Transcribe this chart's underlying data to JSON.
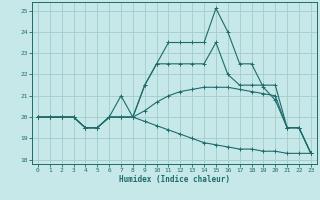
{
  "xlabel": "Humidex (Indice chaleur)",
  "background_color": "#c6e8e8",
  "grid_color": "#a4cccc",
  "line_color": "#1e6b6b",
  "xlim": [
    -0.5,
    23.5
  ],
  "ylim": [
    17.8,
    25.4
  ],
  "yticks": [
    18,
    19,
    20,
    21,
    22,
    23,
    24,
    25
  ],
  "xticks": [
    0,
    1,
    2,
    3,
    4,
    5,
    6,
    7,
    8,
    9,
    10,
    11,
    12,
    13,
    14,
    15,
    16,
    17,
    18,
    19,
    20,
    21,
    22,
    23
  ],
  "lines": [
    {
      "x": [
        0,
        1,
        2,
        3,
        4,
        5,
        6,
        7,
        8,
        9,
        10,
        11,
        12,
        13,
        14,
        15,
        16,
        17,
        18,
        19,
        20,
        21,
        22,
        23
      ],
      "y": [
        20.0,
        20.0,
        20.0,
        20.0,
        19.5,
        19.5,
        20.0,
        21.0,
        20.0,
        21.5,
        22.5,
        23.5,
        23.5,
        23.5,
        23.5,
        25.1,
        24.0,
        22.5,
        22.5,
        21.4,
        20.8,
        19.5,
        19.5,
        18.3
      ]
    },
    {
      "x": [
        0,
        1,
        2,
        3,
        4,
        5,
        6,
        7,
        8,
        9,
        10,
        11,
        12,
        13,
        14,
        15,
        16,
        17,
        18,
        19,
        20,
        21,
        22,
        23
      ],
      "y": [
        20.0,
        20.0,
        20.0,
        20.0,
        19.5,
        19.5,
        20.0,
        20.0,
        20.0,
        21.5,
        22.5,
        22.5,
        22.5,
        22.5,
        22.5,
        23.5,
        22.0,
        21.5,
        21.5,
        21.5,
        21.5,
        19.5,
        19.5,
        18.3
      ]
    },
    {
      "x": [
        0,
        1,
        2,
        3,
        4,
        5,
        6,
        7,
        8,
        9,
        10,
        11,
        12,
        13,
        14,
        15,
        16,
        17,
        18,
        19,
        20,
        21,
        22,
        23
      ],
      "y": [
        20.0,
        20.0,
        20.0,
        20.0,
        19.5,
        19.5,
        20.0,
        20.0,
        20.0,
        20.3,
        20.7,
        21.0,
        21.2,
        21.3,
        21.4,
        21.4,
        21.4,
        21.3,
        21.2,
        21.1,
        21.0,
        19.5,
        19.5,
        18.3
      ]
    },
    {
      "x": [
        0,
        1,
        2,
        3,
        4,
        5,
        6,
        7,
        8,
        9,
        10,
        11,
        12,
        13,
        14,
        15,
        16,
        17,
        18,
        19,
        20,
        21,
        22,
        23
      ],
      "y": [
        20.0,
        20.0,
        20.0,
        20.0,
        19.5,
        19.5,
        20.0,
        20.0,
        20.0,
        19.8,
        19.6,
        19.4,
        19.2,
        19.0,
        18.8,
        18.7,
        18.6,
        18.5,
        18.5,
        18.4,
        18.4,
        18.3,
        18.3,
        18.3
      ]
    }
  ]
}
